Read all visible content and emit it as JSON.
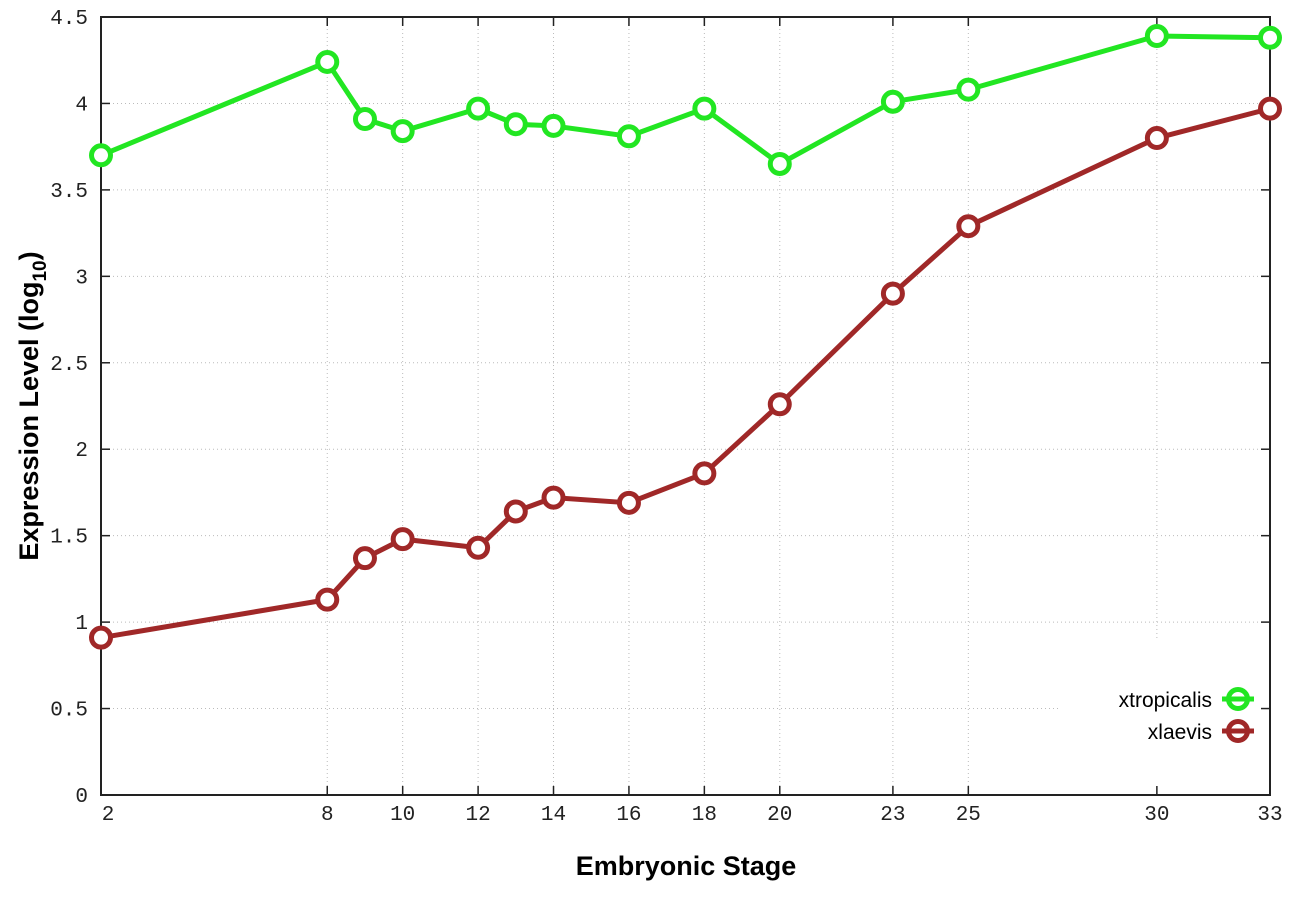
{
  "chart_data": {
    "type": "line",
    "xlabel": "Embryonic Stage",
    "ylabel": "Expression Level (log",
    "ylabel_subscript": "10",
    "ylabel_close": ")",
    "xlim": [
      2,
      33
    ],
    "ylim": [
      0,
      4.5
    ],
    "x_ticks": [
      2,
      8,
      10,
      12,
      14,
      16,
      18,
      20,
      23,
      25,
      30,
      33
    ],
    "y_ticks": [
      0,
      0.5,
      1,
      1.5,
      2,
      2.5,
      3,
      3.5,
      4,
      4.5
    ],
    "y_tick_labels": [
      "0",
      "0.5",
      "1",
      "1.5",
      "2",
      "2.5",
      "3",
      "3.5",
      "4",
      "4.5"
    ],
    "grid": true,
    "legend_position": "bottom-right",
    "x": [
      2,
      8,
      9,
      10,
      12,
      13,
      14,
      16,
      18,
      20,
      23,
      25,
      30,
      33
    ],
    "series": [
      {
        "name": "xtropicalis",
        "color": "#22e622",
        "values": [
          3.7,
          4.24,
          3.91,
          3.84,
          3.97,
          3.88,
          3.87,
          3.81,
          3.97,
          3.65,
          4.01,
          4.08,
          4.39,
          4.38
        ]
      },
      {
        "name": "xlaevis",
        "color": "#a02828",
        "values": [
          0.91,
          1.13,
          1.37,
          1.48,
          1.43,
          1.64,
          1.72,
          1.69,
          1.86,
          2.26,
          2.9,
          3.29,
          3.8,
          3.97
        ]
      }
    ]
  }
}
